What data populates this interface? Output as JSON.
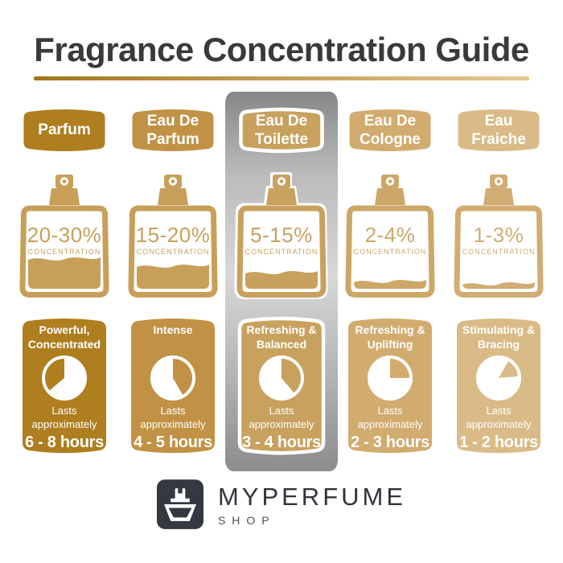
{
  "title": "Fragrance Concentration Guide",
  "accent_rule": {
    "left": "#a1751b",
    "right": "#e6c896"
  },
  "highlight_panel": {
    "top": "#878787",
    "mid": "#d8d8d8",
    "bottom": "#8c8c8c"
  },
  "columns": [
    {
      "label_line1": "Parfum",
      "label_line2": "",
      "color": "#ae7e1f",
      "bottle_color": "#c89f59",
      "concentration": "20-30%",
      "concentration_label": "CONCENTRATION",
      "fill_level": 0.44,
      "profile_line1": "Powerful,",
      "profile_line2": "Concentrated",
      "lasts_label": "Lasts approximately",
      "duration": "6 - 8 hours",
      "clock_wedge": {
        "start_deg": 230,
        "end_deg": 360
      },
      "highlighted": false
    },
    {
      "label_line1": "Eau De",
      "label_line2": "Parfum",
      "color": "#c19245",
      "bottle_color": "#c89f59",
      "concentration": "15-20%",
      "concentration_label": "CONCENTRATION",
      "fill_level": 0.33,
      "profile_line1": "Intense",
      "profile_line2": "",
      "lasts_label": "Lasts approximately",
      "duration": "4 - 5 hours",
      "clock_wedge": {
        "start_deg": 0,
        "end_deg": 150
      },
      "highlighted": false
    },
    {
      "label_line1": "Eau De",
      "label_line2": "Toilette",
      "color": "#c8a15e",
      "bottle_color": "#c8a15e",
      "concentration": "5-15%",
      "concentration_label": "CONCENTRATION",
      "fill_level": 0.24,
      "profile_line1": "Refreshing &",
      "profile_line2": "Balanced",
      "lasts_label": "Lasts approximately",
      "duration": "3 - 4 hours",
      "clock_wedge": {
        "start_deg": 0,
        "end_deg": 140
      },
      "highlighted": true
    },
    {
      "label_line1": "Eau De",
      "label_line2": "Cologne",
      "color": "#d2ab6e",
      "bottle_color": "#cda768",
      "concentration": "2-4%",
      "concentration_label": "CONCENTRATION",
      "fill_level": 0.12,
      "profile_line1": "Refreshing &",
      "profile_line2": "Uplifting",
      "lasts_label": "Lasts approximately",
      "duration": "2 - 3 hours",
      "clock_wedge": {
        "start_deg": 0,
        "end_deg": 90
      },
      "highlighted": false
    },
    {
      "label_line1": "Eau",
      "label_line2": "Fraiche",
      "color": "#dabb87",
      "bottle_color": "#d1ad73",
      "concentration": "1-3%",
      "concentration_label": "CONCENTRATION",
      "fill_level": 0.08,
      "profile_line1": "Stimulating &",
      "profile_line2": "Bracing",
      "lasts_label": "Lasts approximately",
      "duration": "1 - 2 hours",
      "clock_wedge": {
        "start_deg": 30,
        "end_deg": 85
      },
      "highlighted": false
    }
  ],
  "footer": {
    "brand": "MYPERFUME",
    "sub_brand": "SHOP"
  }
}
